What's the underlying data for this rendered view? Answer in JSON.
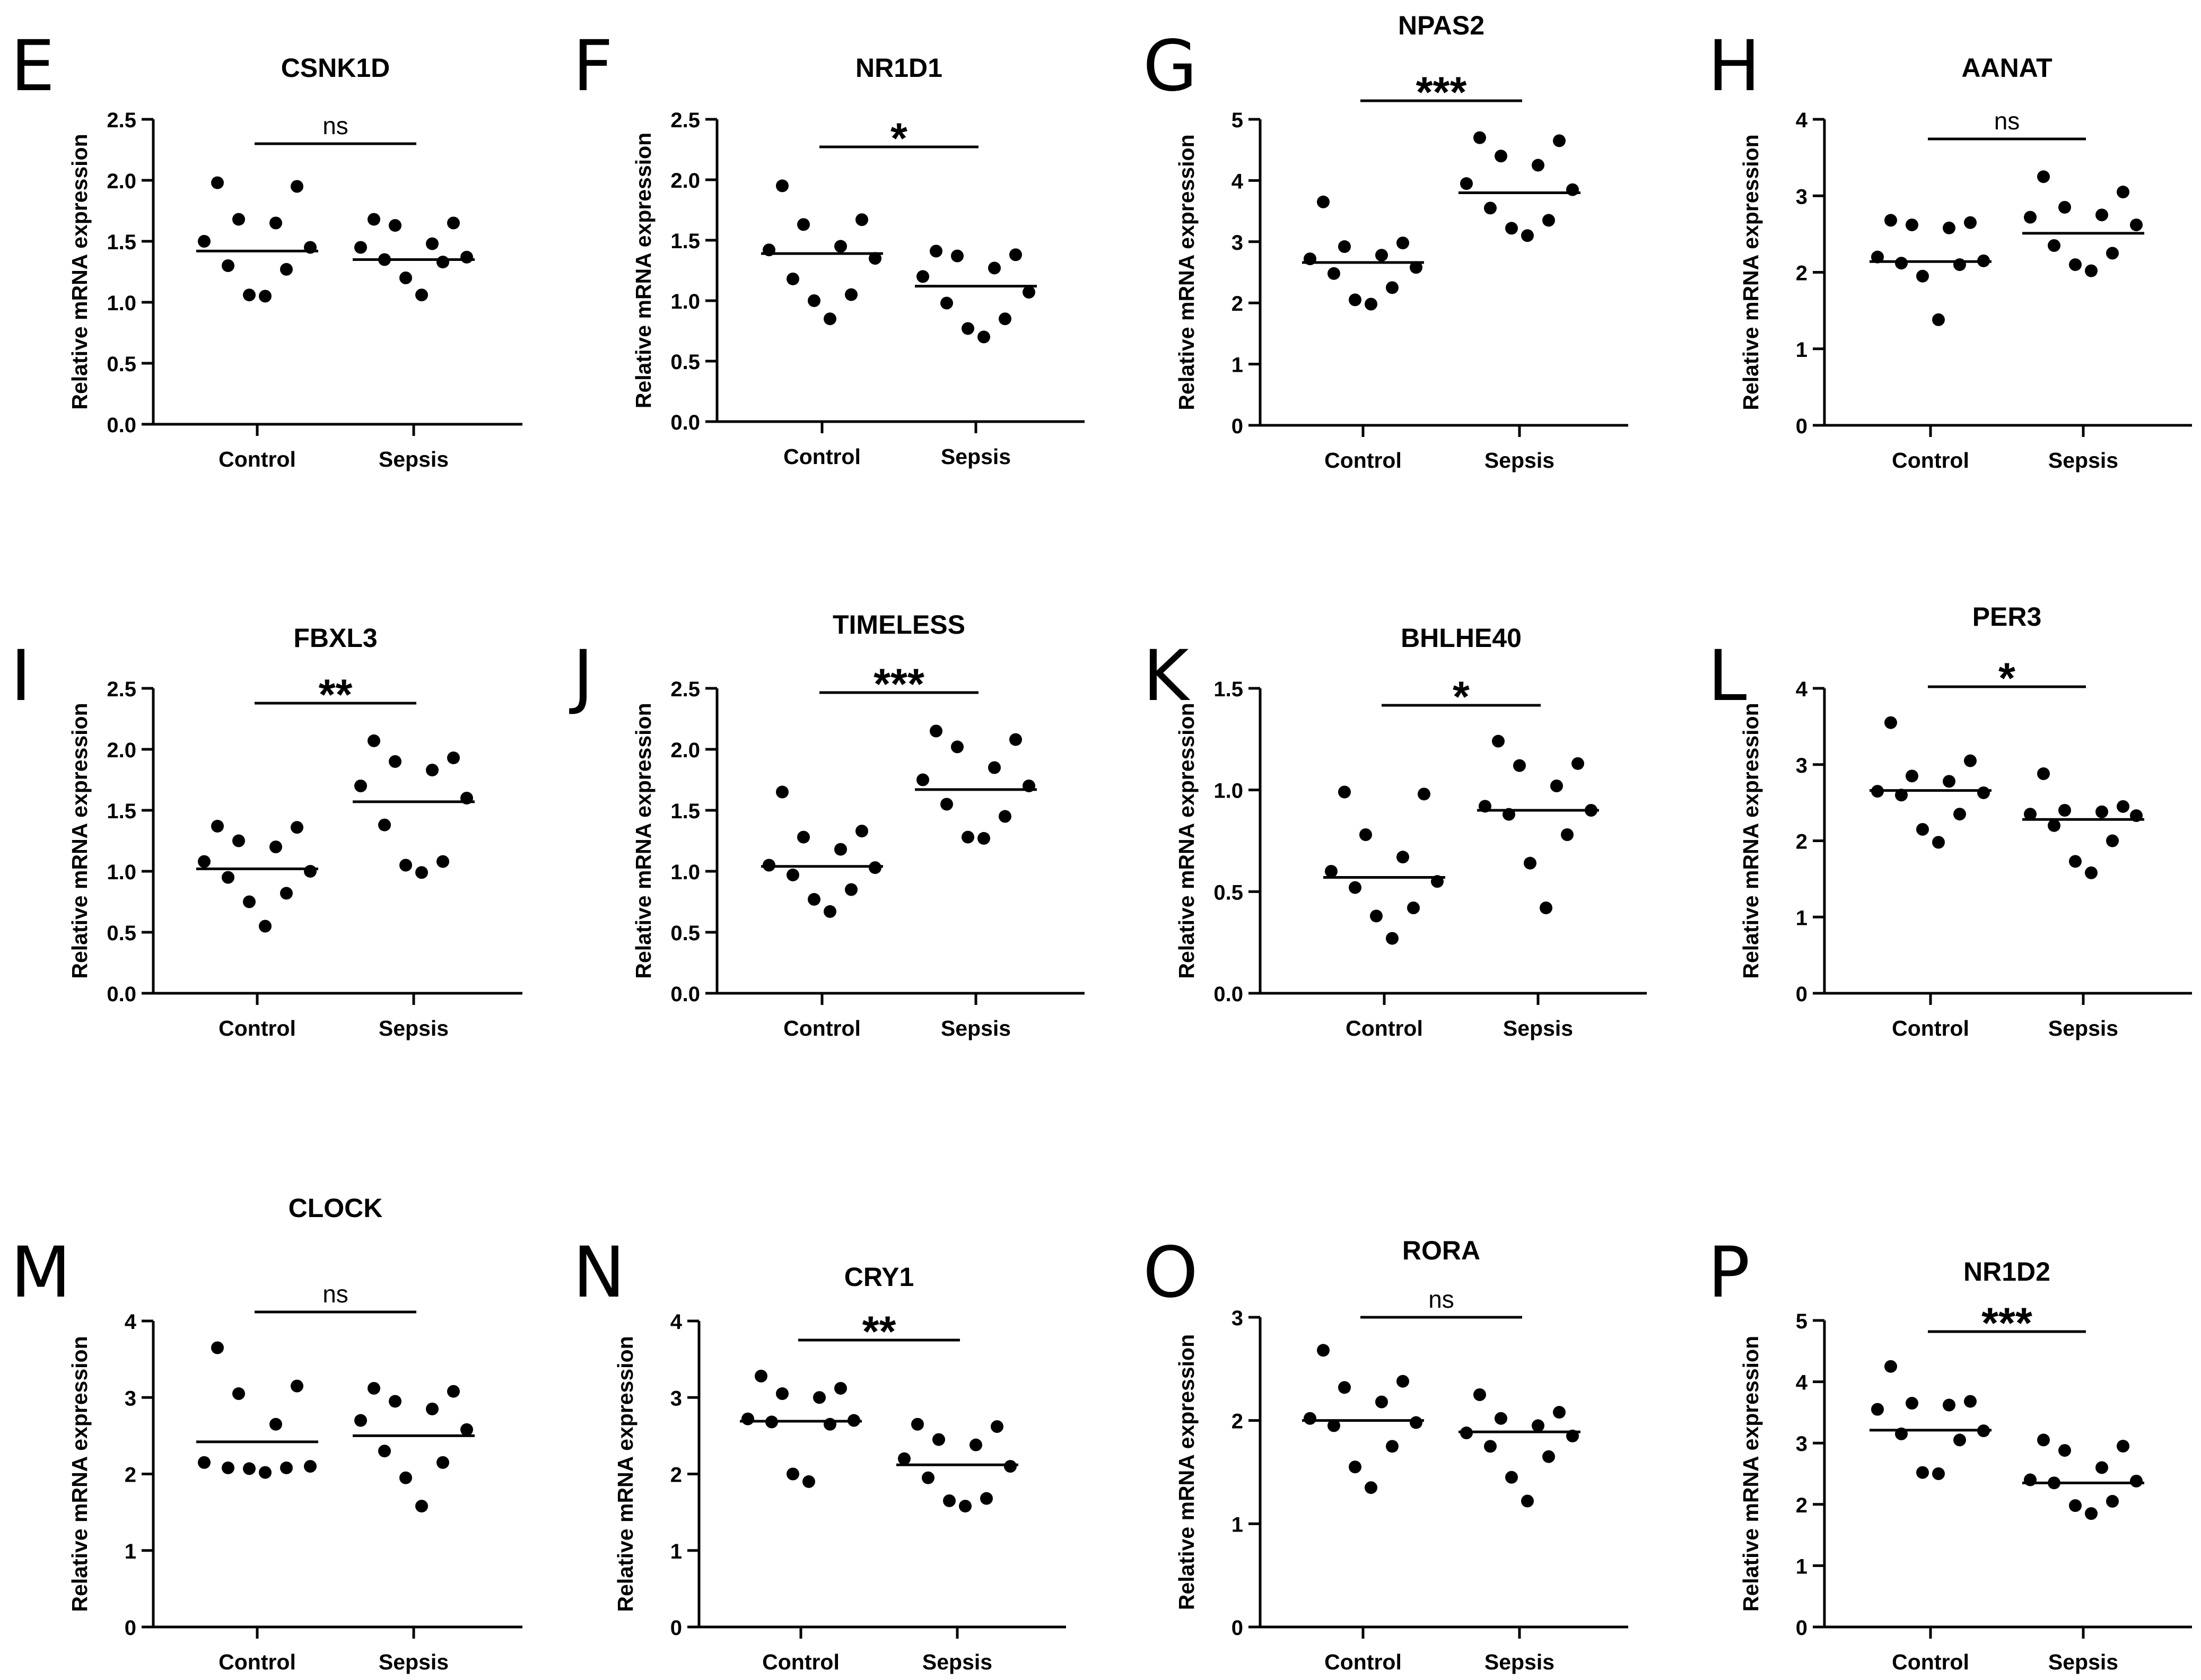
{
  "chart_data": [
    {
      "type": "scatter",
      "panel": "E",
      "title": "CSNK1D",
      "ylabel": "Relative mRNA expression",
      "categories": [
        "Control",
        "Sepsis"
      ],
      "ylim": [
        0,
        2.5
      ],
      "yticks": [
        "0.0",
        "0.5",
        "1.0",
        "1.5",
        "2.0",
        "2.5"
      ],
      "significance": "ns",
      "series": [
        {
          "name": "Control",
          "values": [
            1.98,
            1.95,
            1.68,
            1.65,
            1.5,
            1.45,
            1.3,
            1.27,
            1.06,
            1.05
          ],
          "mean": 1.42
        },
        {
          "name": "Sepsis",
          "values": [
            1.68,
            1.65,
            1.63,
            1.48,
            1.45,
            1.37,
            1.35,
            1.33,
            1.2,
            1.06
          ],
          "mean": 1.35
        }
      ]
    },
    {
      "type": "scatter",
      "panel": "F",
      "title": "NR1D1",
      "ylabel": "Relative mRNA expression",
      "categories": [
        "Control",
        "Sepsis"
      ],
      "ylim": [
        0,
        2.5
      ],
      "yticks": [
        "0.0",
        "0.5",
        "1.0",
        "1.5",
        "2.0",
        "2.5"
      ],
      "significance": "*",
      "series": [
        {
          "name": "Control",
          "values": [
            1.95,
            1.67,
            1.63,
            1.45,
            1.42,
            1.35,
            1.18,
            1.05,
            1.0,
            0.85
          ],
          "mean": 1.39
        },
        {
          "name": "Sepsis",
          "values": [
            1.41,
            1.38,
            1.37,
            1.27,
            1.2,
            1.07,
            0.98,
            0.85,
            0.77,
            0.7
          ],
          "mean": 1.12
        }
      ]
    },
    {
      "type": "scatter",
      "panel": "G",
      "title": "NPAS2",
      "ylabel": "Relative mRNA expression",
      "categories": [
        "Control",
        "Sepsis"
      ],
      "ylim": [
        0,
        5
      ],
      "yticks": [
        "0",
        "1",
        "2",
        "3",
        "4",
        "5"
      ],
      "significance": "***",
      "series": [
        {
          "name": "Control",
          "values": [
            3.65,
            2.98,
            2.92,
            2.78,
            2.72,
            2.58,
            2.48,
            2.25,
            2.05,
            1.98
          ],
          "mean": 2.66
        },
        {
          "name": "Sepsis",
          "values": [
            4.7,
            4.65,
            4.4,
            4.25,
            3.95,
            3.85,
            3.55,
            3.35,
            3.22,
            3.1
          ],
          "mean": 3.8
        }
      ]
    },
    {
      "type": "scatter",
      "panel": "H",
      "title": "AANAT",
      "ylabel": "Relative mRNA expression",
      "categories": [
        "Control",
        "Sepsis"
      ],
      "ylim": [
        0,
        4
      ],
      "yticks": [
        "0",
        "1",
        "2",
        "3",
        "4"
      ],
      "significance": "ns",
      "series": [
        {
          "name": "Control",
          "values": [
            2.68,
            2.65,
            2.62,
            2.58,
            2.2,
            2.15,
            2.12,
            2.1,
            1.95,
            1.38
          ],
          "mean": 2.14
        },
        {
          "name": "Sepsis",
          "values": [
            3.25,
            3.05,
            2.85,
            2.75,
            2.72,
            2.62,
            2.35,
            2.25,
            2.1,
            2.02
          ],
          "mean": 2.51
        }
      ]
    },
    {
      "type": "scatter",
      "panel": "I",
      "title": "FBXL3",
      "ylabel": "Relative mRNA expression",
      "categories": [
        "Control",
        "Sepsis"
      ],
      "ylim": [
        0,
        2.5
      ],
      "yticks": [
        "0.0",
        "0.5",
        "1.0",
        "1.5",
        "2.0",
        "2.5"
      ],
      "significance": "**",
      "series": [
        {
          "name": "Control",
          "values": [
            1.37,
            1.36,
            1.25,
            1.2,
            1.08,
            1.0,
            0.95,
            0.82,
            0.75,
            0.55
          ],
          "mean": 1.02
        },
        {
          "name": "Sepsis",
          "values": [
            2.07,
            1.93,
            1.9,
            1.83,
            1.7,
            1.6,
            1.38,
            1.08,
            1.05,
            0.99
          ],
          "mean": 1.57
        }
      ]
    },
    {
      "type": "scatter",
      "panel": "J",
      "title": "TIMELESS",
      "ylabel": "Relative mRNA expression",
      "categories": [
        "Control",
        "Sepsis"
      ],
      "ylim": [
        0,
        2.5
      ],
      "yticks": [
        "0.0",
        "0.5",
        "1.0",
        "1.5",
        "2.0",
        "2.5"
      ],
      "significance": "***",
      "series": [
        {
          "name": "Control",
          "values": [
            1.65,
            1.33,
            1.28,
            1.18,
            1.05,
            1.03,
            0.97,
            0.85,
            0.77,
            0.67
          ],
          "mean": 1.04
        },
        {
          "name": "Sepsis",
          "values": [
            2.15,
            2.08,
            2.02,
            1.85,
            1.75,
            1.7,
            1.55,
            1.45,
            1.28,
            1.27
          ],
          "mean": 1.67
        }
      ]
    },
    {
      "type": "scatter",
      "panel": "K",
      "title": "BHLHE40",
      "ylabel": "Relative mRNA expression",
      "categories": [
        "Control",
        "Sepsis"
      ],
      "ylim": [
        0,
        1.5
      ],
      "yticks": [
        "0.0",
        "0.5",
        "1.0",
        "1.5"
      ],
      "significance": "*",
      "series": [
        {
          "name": "Control",
          "values": [
            0.99,
            0.98,
            0.78,
            0.67,
            0.6,
            0.55,
            0.52,
            0.42,
            0.38,
            0.27
          ],
          "mean": 0.57
        },
        {
          "name": "Sepsis",
          "values": [
            1.24,
            1.13,
            1.12,
            1.02,
            0.92,
            0.9,
            0.88,
            0.78,
            0.64,
            0.42
          ],
          "mean": 0.9
        }
      ]
    },
    {
      "type": "scatter",
      "panel": "L",
      "title": "PER3",
      "ylabel": "Relative mRNA expression",
      "categories": [
        "Control",
        "Sepsis"
      ],
      "ylim": [
        0,
        4
      ],
      "yticks": [
        "0",
        "1",
        "2",
        "3",
        "4"
      ],
      "significance": "*",
      "series": [
        {
          "name": "Control",
          "values": [
            3.55,
            3.05,
            2.85,
            2.78,
            2.65,
            2.63,
            2.6,
            2.35,
            2.15,
            1.98
          ],
          "mean": 2.66
        },
        {
          "name": "Sepsis",
          "values": [
            2.88,
            2.45,
            2.4,
            2.38,
            2.35,
            2.33,
            2.2,
            2.0,
            1.73,
            1.58
          ],
          "mean": 2.28
        }
      ]
    },
    {
      "type": "scatter",
      "panel": "M",
      "title": "CLOCK",
      "ylabel": "Relative mRNA expression",
      "categories": [
        "Control",
        "Sepsis"
      ],
      "ylim": [
        0,
        4
      ],
      "yticks": [
        "0",
        "1",
        "2",
        "3",
        "4"
      ],
      "significance": "ns",
      "series": [
        {
          "name": "Control",
          "values": [
            3.65,
            3.15,
            3.05,
            2.65,
            2.15,
            2.1,
            2.08,
            2.08,
            2.07,
            2.02
          ],
          "mean": 2.42
        },
        {
          "name": "Sepsis",
          "values": [
            3.12,
            3.08,
            2.95,
            2.85,
            2.7,
            2.58,
            2.3,
            2.15,
            1.95,
            1.58
          ],
          "mean": 2.5
        }
      ]
    },
    {
      "type": "scatter",
      "panel": "N",
      "title": "CRY1",
      "ylabel": "Relative mRNA expression",
      "categories": [
        "Control",
        "Sepsis"
      ],
      "ylim": [
        0,
        4
      ],
      "yticks": [
        "0",
        "1",
        "2",
        "3",
        "4"
      ],
      "significance": "**",
      "series": [
        {
          "name": "Control",
          "values": [
            3.28,
            3.12,
            3.05,
            3.0,
            2.72,
            2.7,
            2.68,
            2.65,
            2.0,
            1.9
          ],
          "mean": 2.69
        },
        {
          "name": "Sepsis",
          "values": [
            2.65,
            2.62,
            2.45,
            2.38,
            2.2,
            2.1,
            1.95,
            1.68,
            1.65,
            1.58
          ],
          "mean": 2.12
        }
      ]
    },
    {
      "type": "scatter",
      "panel": "O",
      "title": "RORA",
      "ylabel": "Relative mRNA expression",
      "categories": [
        "Control",
        "Sepsis"
      ],
      "ylim": [
        0,
        3
      ],
      "yticks": [
        "0",
        "1",
        "2",
        "3"
      ],
      "significance": "ns",
      "series": [
        {
          "name": "Control",
          "values": [
            2.68,
            2.38,
            2.32,
            2.18,
            2.02,
            1.98,
            1.95,
            1.75,
            1.55,
            1.35
          ],
          "mean": 2.0
        },
        {
          "name": "Sepsis",
          "values": [
            2.25,
            2.08,
            2.02,
            1.95,
            1.88,
            1.85,
            1.75,
            1.65,
            1.45,
            1.22
          ],
          "mean": 1.89
        }
      ]
    },
    {
      "type": "scatter",
      "panel": "P",
      "title": "NR1D2",
      "ylabel": "Relative mRNA expression",
      "categories": [
        "Control",
        "Sepsis"
      ],
      "ylim": [
        0,
        5
      ],
      "yticks": [
        "0",
        "1",
        "2",
        "3",
        "4",
        "5"
      ],
      "significance": "***",
      "series": [
        {
          "name": "Control",
          "values": [
            4.25,
            3.68,
            3.65,
            3.62,
            3.55,
            3.2,
            3.15,
            3.05,
            2.52,
            2.5
          ],
          "mean": 3.21
        },
        {
          "name": "Sepsis",
          "values": [
            3.05,
            2.95,
            2.88,
            2.6,
            2.4,
            2.38,
            2.35,
            2.05,
            1.98,
            1.85
          ],
          "mean": 2.35
        }
      ]
    }
  ]
}
